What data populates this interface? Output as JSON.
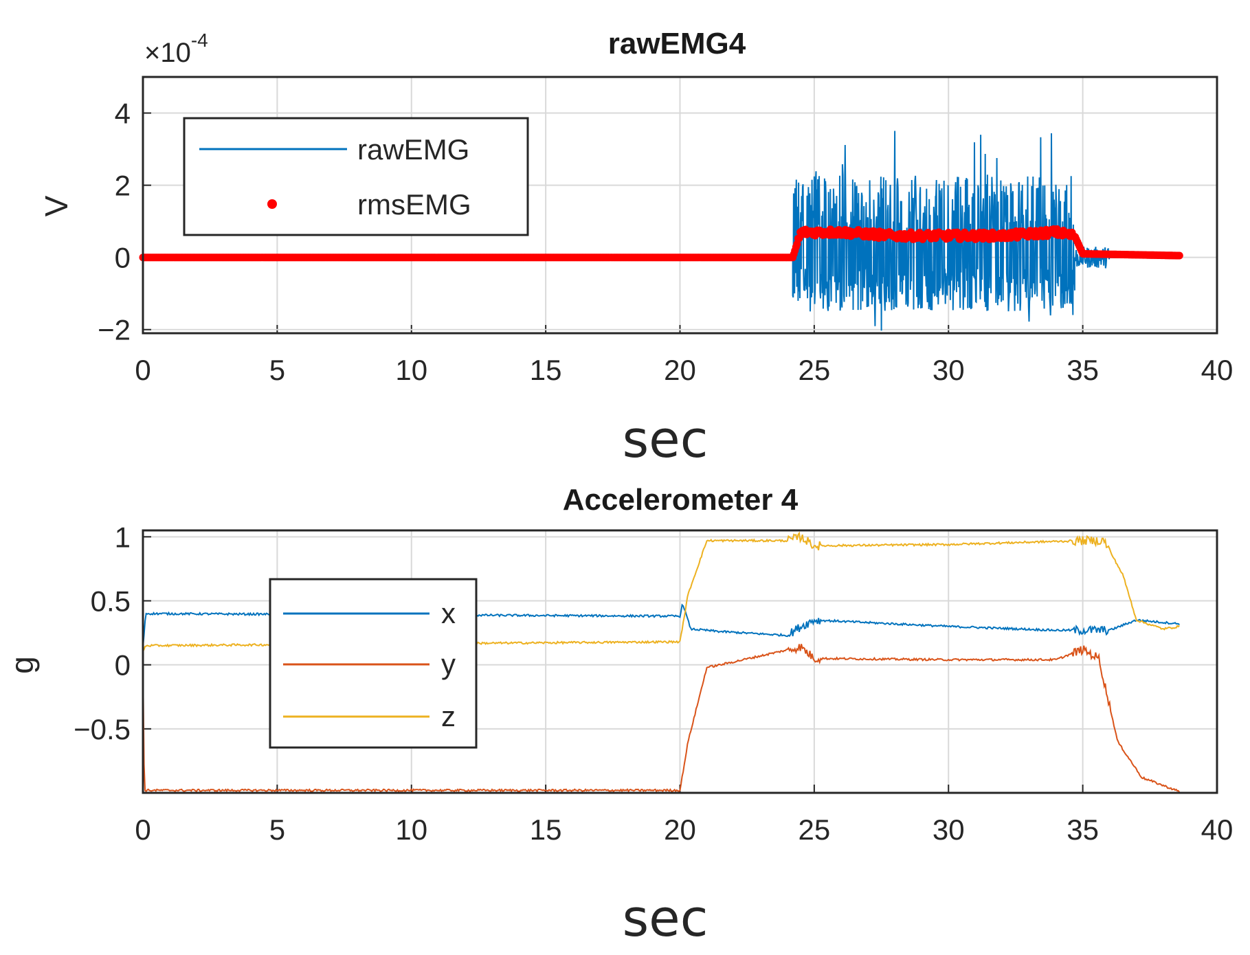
{
  "colors": {
    "rawEMG": "#0072BD",
    "rmsEMG": "#FF0000",
    "x": "#0072BD",
    "y": "#D95319",
    "z": "#EDB120",
    "grid": "#d9d9d9",
    "axis": "#262626"
  },
  "chart_data": [
    {
      "type": "line",
      "title": "rawEMG4",
      "xlabel": "sec",
      "ylabel": "V",
      "y_exponent_label": "×10",
      "y_exponent_power": "-4",
      "xlim": [
        0,
        40
      ],
      "ylim": [
        -2.1,
        5
      ],
      "y_scale_factor": 0.0001,
      "grid": true,
      "legend_position": "top-left",
      "xticks": [
        "0",
        "5",
        "10",
        "15",
        "20",
        "25",
        "30",
        "35",
        "40"
      ],
      "yticks": [
        "−2",
        "0",
        "2",
        "4"
      ],
      "ytick_values": [
        -2,
        0,
        2,
        4
      ],
      "series": [
        {
          "name": "rawEMG",
          "style": "line",
          "segments": [
            {
              "x": [
                0,
                24.2
              ],
              "amplitude": 0
            },
            {
              "x": [
                24.2,
                34.7
              ],
              "amplitude_upper": 2.3,
              "amplitude_lower": -1.5,
              "peak_max": 3.6,
              "peak_min": -2.1
            },
            {
              "x": [
                34.7,
                36
              ],
              "amplitude": 0.3
            },
            {
              "x": [
                36,
                38.6
              ],
              "amplitude": 0
            }
          ]
        },
        {
          "name": "rmsEMG",
          "style": "markers",
          "x": [
            0,
            24.2,
            24.5,
            26,
            28,
            30,
            32,
            34,
            34.7,
            35,
            38.6
          ],
          "y": [
            0,
            0,
            0.7,
            0.7,
            0.6,
            0.6,
            0.6,
            0.7,
            0.6,
            0.1,
            0.05
          ]
        }
      ]
    },
    {
      "type": "line",
      "title": "Accelerometer 4",
      "xlabel": "sec",
      "ylabel": "g",
      "xlim": [
        0,
        40
      ],
      "ylim": [
        -1,
        1.05
      ],
      "grid": true,
      "legend_position": "left",
      "xticks": [
        "0",
        "5",
        "10",
        "15",
        "20",
        "25",
        "30",
        "35",
        "40"
      ],
      "yticks": [
        "1",
        "0.5",
        "0",
        "−0.5"
      ],
      "ytick_values": [
        1,
        0.5,
        0,
        -0.5
      ],
      "series": [
        {
          "name": "x",
          "x": [
            0,
            0.1,
            20,
            20.1,
            20.4,
            21.5,
            24,
            24.5,
            25,
            30,
            34,
            35,
            36,
            37,
            38.6
          ],
          "y": [
            0.13,
            0.4,
            0.38,
            0.48,
            0.28,
            0.26,
            0.23,
            0.3,
            0.35,
            0.3,
            0.27,
            0.27,
            0.27,
            0.35,
            0.32
          ]
        },
        {
          "name": "y",
          "x": [
            0,
            0.05,
            20,
            20.3,
            21,
            21.5,
            24.5,
            25,
            30,
            34,
            35,
            35.6,
            36.3,
            37.2,
            38.6
          ],
          "y": [
            0,
            -0.98,
            -0.98,
            -0.6,
            -0.02,
            0.0,
            0.14,
            0.05,
            0.04,
            0.04,
            0.12,
            0.05,
            -0.6,
            -0.88,
            -0.99
          ]
        },
        {
          "name": "z",
          "x": [
            0,
            0.1,
            20,
            20.3,
            21,
            24,
            24.5,
            25,
            30,
            35,
            35.8,
            36.5,
            37,
            38,
            38.6
          ],
          "y": [
            0.1,
            0.15,
            0.18,
            0.55,
            0.97,
            0.97,
            1.0,
            0.93,
            0.94,
            0.97,
            0.97,
            0.7,
            0.35,
            0.28,
            0.3
          ]
        }
      ]
    }
  ]
}
